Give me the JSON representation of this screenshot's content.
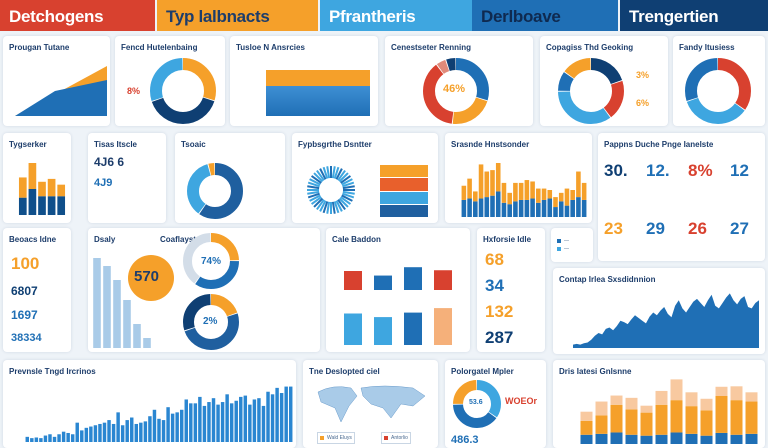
{
  "colors": {
    "red": "#d8412f",
    "orange": "#f5a02a",
    "light_blue": "#3ea6e0",
    "blue": "#1f6fb5",
    "navy": "#0f3f73"
  },
  "tabs": [
    {
      "label": "Detchogens",
      "bg": "#d8412f",
      "fg": "#ffffff"
    },
    {
      "label": "Typ lalbnacts",
      "bg": "#f5a02a",
      "fg": "#1d3d6b"
    },
    {
      "label": "Pfrantheris",
      "bg": "#3ea6e0",
      "fg": "#ffffff"
    },
    {
      "label": "Derlboave",
      "bg": "#1f6fb5",
      "fg": "#0f2a50"
    },
    {
      "label": "Trengertien",
      "bg": "#0f3f73",
      "fg": "#ffffff"
    }
  ],
  "cards": {
    "c1": {
      "title": "Prougan Tutane"
    },
    "c2": {
      "title": "Fencd Hutelenbaing",
      "value": "8%"
    },
    "c3": {
      "title": "Tusloe N Ansrcies"
    },
    "c4": {
      "title": "Cenestseter Renning",
      "value": "46%",
      "donut": [
        {
          "v": 30,
          "c": "#1f6fb5"
        },
        {
          "v": 22,
          "c": "#f5a02a"
        },
        {
          "v": 38,
          "c": "#d8412f"
        },
        {
          "v": 5,
          "c": "#e08a7a"
        },
        {
          "v": 5,
          "c": "#0f3f73"
        }
      ]
    },
    "c5": {
      "title": "Copagiss Thd Geoking",
      "v1": "3%",
      "v2": "6%",
      "donut": [
        {
          "v": 20,
          "c": "#0f3f73"
        },
        {
          "v": 20,
          "c": "#d8412f"
        },
        {
          "v": 35,
          "c": "#3ea6e0"
        },
        {
          "v": 10,
          "c": "#1f6fb5"
        },
        {
          "v": 15,
          "c": "#f5a02a"
        }
      ]
    },
    "c6": {
      "title": "Fandy Itusiess",
      "donut": [
        {
          "v": 35,
          "c": "#d8412f"
        },
        {
          "v": 35,
          "c": "#3ea6e0"
        },
        {
          "v": 30,
          "c": "#1f6fb5"
        }
      ]
    },
    "c7": {
      "title": "Tygserker",
      "stack": [
        [
          12,
          14
        ],
        [
          18,
          18
        ],
        [
          13,
          10
        ],
        [
          13,
          12
        ],
        [
          13,
          8
        ]
      ]
    },
    "c8": {
      "title": "Tisas Itscle",
      "v1": "4J6 6",
      "v2": "4J9"
    },
    "c9": {
      "title": "Tsoaic",
      "donut": [
        {
          "v": 60,
          "c": "#1f5f9f"
        },
        {
          "v": 36,
          "c": "#3ea6e0"
        },
        {
          "v": 4,
          "c": "#f5a02a"
        }
      ]
    },
    "c10": {
      "title": "Fypbsgrthe Dsntter"
    },
    "c11": {
      "title": "Srasnde Hnstsonder",
      "stack": [
        [
          12,
          10
        ],
        [
          13,
          14
        ],
        [
          11,
          7
        ],
        [
          13,
          24
        ],
        [
          14,
          18
        ],
        [
          15,
          18
        ],
        [
          18,
          20
        ],
        [
          10,
          14
        ],
        [
          9,
          8
        ],
        [
          11,
          13
        ],
        [
          12,
          12
        ],
        [
          12,
          14
        ],
        [
          13,
          12
        ],
        [
          10,
          10
        ],
        [
          12,
          8
        ],
        [
          13,
          6
        ],
        [
          7,
          7
        ],
        [
          11,
          6
        ],
        [
          8,
          12
        ],
        [
          12,
          7
        ],
        [
          14,
          18
        ],
        [
          12,
          12
        ]
      ]
    },
    "c12": {
      "title": "Pappns Duche Pnge Ianelste",
      "kpis": [
        {
          "v": "30.",
          "c": "#0f3f73"
        },
        {
          "v": "12.",
          "c": "#1f6fb5"
        },
        {
          "v": "8%",
          "c": "#d8412f"
        },
        {
          "v": "12",
          "c": "#1f6fb5"
        },
        {
          "v": "23",
          "c": "#f5a02a"
        },
        {
          "v": "29",
          "c": "#1f6fb5"
        },
        {
          "v": "26",
          "c": "#d8412f"
        },
        {
          "v": "27",
          "c": "#1f6fb5"
        }
      ]
    },
    "c13": {
      "title": "Beoacs Idne",
      "vals": [
        "100",
        "6807",
        "1697",
        "38334"
      ]
    },
    "c14": {
      "title": "Dsaly",
      "bars": [
        90,
        82,
        68,
        48,
        24,
        10
      ]
    },
    "c15": {
      "title": "Coaflayst",
      "circle": "570",
      "d1": "74%",
      "d2": "2%"
    },
    "c16": {
      "title": "Cale Baddon",
      "top": [
        {
          "v": 50,
          "c": "#d8412f"
        },
        {
          "v": 38,
          "c": "#1f6fb5"
        },
        {
          "v": 60,
          "c": "#1f6fb5"
        },
        {
          "v": 52,
          "c": "#d8412f"
        }
      ],
      "bottom": [
        {
          "v": 70,
          "c": "#3ea6e0"
        },
        {
          "v": 62,
          "c": "#3ea6e0"
        },
        {
          "v": 72,
          "c": "#1f6fb5"
        },
        {
          "v": 82,
          "c": "#f5b07a"
        }
      ]
    },
    "c17": {
      "title": "Hxforsie Idle",
      "vals": [
        {
          "v": "68",
          "c": "#f5a02a"
        },
        {
          "v": "34",
          "c": "#1f6fb5"
        },
        {
          "v": "132",
          "c": "#f5a02a"
        },
        {
          "v": "287",
          "c": "#0f3f73"
        }
      ]
    },
    "c18": {
      "title": "Contap Irlea Sxsdidnnion",
      "series": [
        5,
        6,
        5,
        7,
        8,
        12,
        18,
        22,
        20,
        28,
        30,
        26,
        32,
        40,
        38,
        35,
        42,
        48,
        44,
        40,
        36,
        46,
        52,
        48,
        55,
        60,
        50,
        45,
        62,
        70,
        58,
        52,
        60,
        68,
        72,
        66,
        60,
        70,
        78,
        62,
        58,
        66,
        74,
        80,
        70,
        64,
        72,
        76,
        60,
        58,
        66,
        70
      ]
    },
    "c19": {
      "title": "Prevnsle Tngd Ircrinos",
      "bars": [
        8,
        6,
        7,
        6,
        10,
        12,
        8,
        12,
        16,
        14,
        12,
        30,
        18,
        22,
        24,
        26,
        28,
        30,
        34,
        28,
        46,
        26,
        34,
        38,
        28,
        30,
        32,
        40,
        50,
        36,
        34,
        54,
        44,
        46,
        50,
        66,
        60,
        60,
        70,
        56,
        62,
        68,
        58,
        62,
        74,
        60,
        64,
        70,
        72,
        58,
        66,
        68,
        56,
        78,
        74,
        84,
        76,
        86,
        86
      ]
    },
    "c20": {
      "title": "Tne Deslopted ciel",
      "leg1": "Wald Eluys",
      "leg2": "Antorlio"
    },
    "c21": {
      "title": "Polorgatel Mpler",
      "center": "53.6",
      "red": "WOEOr",
      "value": "486.3",
      "donut": [
        {
          "v": 35,
          "c": "#3ea6e0"
        },
        {
          "v": 40,
          "c": "#1f6fb5"
        },
        {
          "v": 25,
          "c": "#f5a02a"
        }
      ]
    },
    "c22": {
      "title": "Dris Iatesi Gnlsnne",
      "stack": [
        [
          20,
          30,
          20
        ],
        [
          22,
          40,
          30
        ],
        [
          25,
          60,
          20
        ],
        [
          20,
          55,
          25
        ],
        [
          18,
          50,
          15
        ],
        [
          20,
          65,
          30
        ],
        [
          25,
          70,
          45
        ],
        [
          22,
          60,
          30
        ],
        [
          18,
          55,
          25
        ],
        [
          24,
          80,
          20
        ],
        [
          20,
          75,
          30
        ],
        [
          22,
          70,
          20
        ]
      ]
    }
  }
}
